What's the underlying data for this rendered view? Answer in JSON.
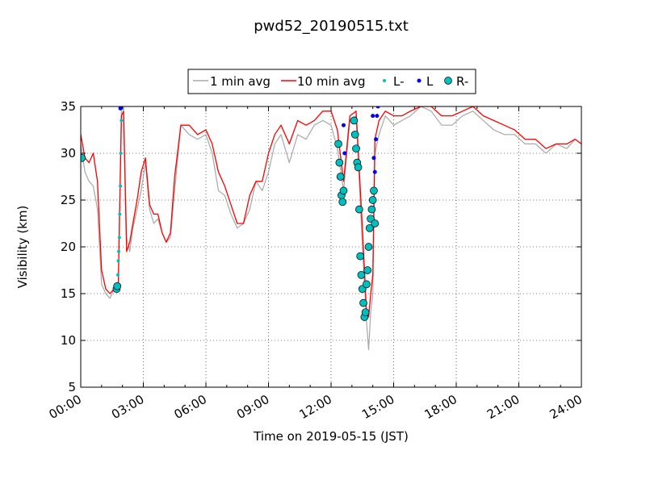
{
  "chart_data": {
    "type": "line",
    "title": "pwd52_20190515.txt",
    "xlabel": "Time on 2019-05-15 (JST)",
    "ylabel": "Visibility (km)",
    "xlim": [
      0,
      24
    ],
    "ylim": [
      5,
      35
    ],
    "x_unit": "hours (JST)",
    "x_ticks": [
      "00:00",
      "03:00",
      "06:00",
      "09:00",
      "12:00",
      "15:00",
      "18:00",
      "21:00",
      "24:00"
    ],
    "y_ticks": [
      "5",
      "10",
      "15",
      "20",
      "25",
      "30",
      "35"
    ],
    "grid": true,
    "legend_position": "top-center",
    "colors": {
      "avg1": "#a8a8a8",
      "avg10": "#ff0000",
      "l_minus": "#00bfbf",
      "l": "#0000ff",
      "r_minus": "#00bfbf"
    },
    "series": [
      {
        "name": "1 min avg",
        "kind": "line",
        "x": [
          0.0,
          0.2,
          0.4,
          0.6,
          0.8,
          1.0,
          1.2,
          1.4,
          1.6,
          1.8,
          1.95,
          2.05,
          2.2,
          2.35,
          2.5,
          2.7,
          2.9,
          3.1,
          3.3,
          3.5,
          3.7,
          3.9,
          4.1,
          4.3,
          4.5,
          4.8,
          5.2,
          5.6,
          6.0,
          6.3,
          6.6,
          6.9,
          7.2,
          7.5,
          7.8,
          8.1,
          8.4,
          8.7,
          9.0,
          9.3,
          9.6,
          10.0,
          10.4,
          10.8,
          11.2,
          11.6,
          12.0,
          12.3,
          12.6,
          12.9,
          13.2,
          13.5,
          13.7,
          13.8,
          13.9,
          14.0,
          14.1,
          14.3,
          14.6,
          15.0,
          15.4,
          15.8,
          16.3,
          16.8,
          17.3,
          17.8,
          18.3,
          18.8,
          19.3,
          19.8,
          20.3,
          20.8,
          21.3,
          21.8,
          22.3,
          22.8,
          23.3,
          23.7,
          24.0
        ],
        "y": [
          31.0,
          28.0,
          27.0,
          26.5,
          24.0,
          16.0,
          15.0,
          14.5,
          15.5,
          16.0,
          35.0,
          35.0,
          21.0,
          19.5,
          22.0,
          24.0,
          26.0,
          29.0,
          24.0,
          22.5,
          23.0,
          21.5,
          20.5,
          21.0,
          26.0,
          33.0,
          32.0,
          31.5,
          32.0,
          30.0,
          26.0,
          25.5,
          23.5,
          22.0,
          22.5,
          24.0,
          27.0,
          26.0,
          28.0,
          31.0,
          32.0,
          29.0,
          32.0,
          31.5,
          33.0,
          33.5,
          33.0,
          30.5,
          26.0,
          33.5,
          34.0,
          20.0,
          12.0,
          9.0,
          13.0,
          15.0,
          30.0,
          32.0,
          34.0,
          33.0,
          33.5,
          34.0,
          35.0,
          34.5,
          33.0,
          33.0,
          34.0,
          34.5,
          33.5,
          32.5,
          32.0,
          32.0,
          31.0,
          31.0,
          30.0,
          31.0,
          30.5,
          31.5,
          31.0
        ]
      },
      {
        "name": "10 min avg",
        "kind": "line",
        "x": [
          0.0,
          0.2,
          0.4,
          0.6,
          0.8,
          1.0,
          1.2,
          1.4,
          1.6,
          1.8,
          1.95,
          2.05,
          2.2,
          2.35,
          2.5,
          2.7,
          2.9,
          3.1,
          3.3,
          3.5,
          3.7,
          3.9,
          4.1,
          4.3,
          4.5,
          4.8,
          5.2,
          5.6,
          6.0,
          6.3,
          6.6,
          6.9,
          7.2,
          7.5,
          7.8,
          8.1,
          8.4,
          8.7,
          9.0,
          9.3,
          9.6,
          10.0,
          10.4,
          10.8,
          11.2,
          11.6,
          12.0,
          12.3,
          12.6,
          12.9,
          13.2,
          13.5,
          13.7,
          13.8,
          13.9,
          14.0,
          14.1,
          14.3,
          14.6,
          15.0,
          15.4,
          15.8,
          16.3,
          16.8,
          17.3,
          17.8,
          18.3,
          18.8,
          19.3,
          19.8,
          20.3,
          20.8,
          21.3,
          21.8,
          22.3,
          22.8,
          23.3,
          23.7,
          24.0
        ],
        "y": [
          32.0,
          29.5,
          29.0,
          30.0,
          27.0,
          17.5,
          15.5,
          15.0,
          15.5,
          16.0,
          34.0,
          34.5,
          19.5,
          20.5,
          22.5,
          25.0,
          28.0,
          29.5,
          24.5,
          23.5,
          23.5,
          21.5,
          20.5,
          21.5,
          27.5,
          33.0,
          33.0,
          32.0,
          32.5,
          31.0,
          28.0,
          26.5,
          24.5,
          22.5,
          22.5,
          25.5,
          27.0,
          27.0,
          30.0,
          32.0,
          33.0,
          31.0,
          33.5,
          33.0,
          33.5,
          34.5,
          34.5,
          32.5,
          27.0,
          34.0,
          34.5,
          22.0,
          13.0,
          12.5,
          15.0,
          17.0,
          31.5,
          33.5,
          34.5,
          34.0,
          34.0,
          34.5,
          35.0,
          35.0,
          34.0,
          34.0,
          34.5,
          35.0,
          34.0,
          33.5,
          33.0,
          32.5,
          31.5,
          31.5,
          30.5,
          31.0,
          31.0,
          31.5,
          31.0
        ]
      },
      {
        "name": "L-",
        "kind": "points",
        "x": [
          1.75,
          1.78,
          1.8,
          1.82,
          1.85,
          1.87,
          1.9,
          1.92,
          1.95,
          1.97
        ],
        "y": [
          16.0,
          17.0,
          18.5,
          19.5,
          21.0,
          23.5,
          26.5,
          30.0,
          33.5,
          34.8
        ]
      },
      {
        "name": "L",
        "kind": "points",
        "x": [
          1.9,
          12.6,
          12.65,
          14.0,
          14.05,
          14.1,
          14.15,
          14.2,
          14.25
        ],
        "y": [
          34.8,
          33.0,
          30.0,
          34.0,
          29.5,
          28.0,
          31.5,
          34.0,
          35.0
        ]
      },
      {
        "name": "R-",
        "kind": "points",
        "x": [
          0.05,
          1.72,
          1.75,
          12.35,
          12.4,
          12.45,
          12.5,
          12.55,
          12.6,
          13.1,
          13.15,
          13.2,
          13.25,
          13.3,
          13.35,
          13.4,
          13.45,
          13.5,
          13.55,
          13.6,
          13.65,
          13.7,
          13.75,
          13.8,
          13.85,
          13.9,
          13.95,
          14.0,
          14.05,
          14.1
        ],
        "y": [
          29.5,
          15.5,
          15.8,
          31.0,
          29.0,
          27.5,
          25.5,
          24.8,
          26.0,
          33.5,
          32.0,
          30.5,
          29.0,
          28.5,
          24.0,
          19.0,
          17.0,
          15.5,
          14.0,
          12.5,
          13.0,
          16.0,
          17.5,
          20.0,
          22.0,
          23.0,
          24.0,
          25.0,
          26.0,
          22.5
        ]
      }
    ]
  }
}
